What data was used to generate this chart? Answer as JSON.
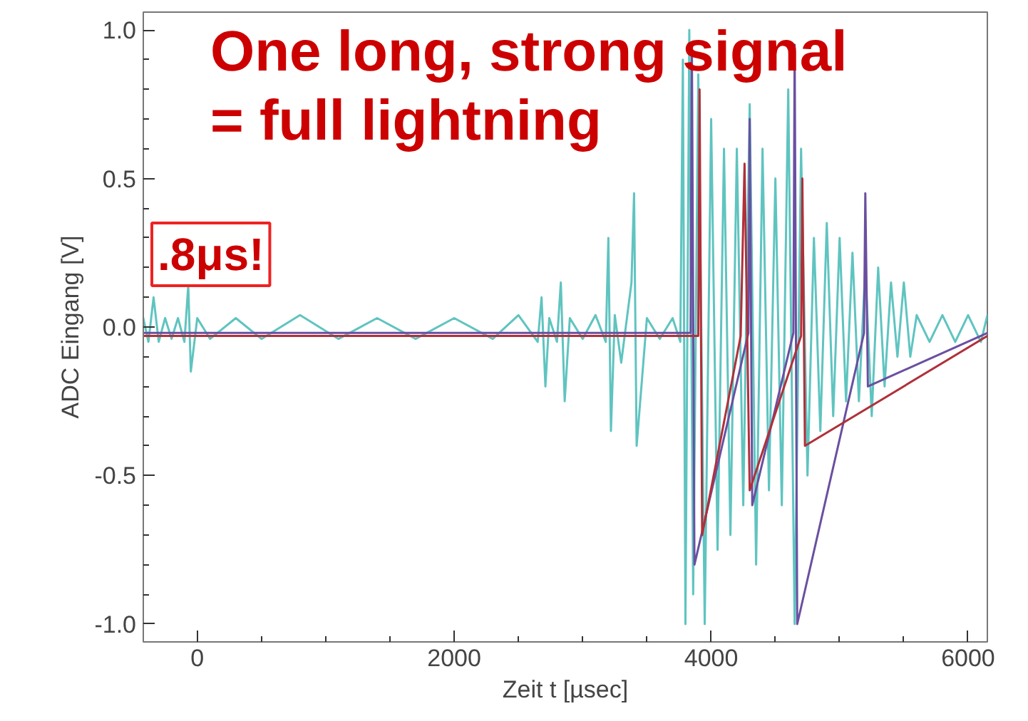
{
  "chart_data": {
    "type": "line",
    "xlabel": "Zeit t [µsec]",
    "ylabel": "ADC Eingang [V]",
    "annotations": [
      ".8μs!",
      "One long, strong signal\n= full lightning"
    ],
    "xlim": [
      -420,
      6150
    ],
    "ylim": [
      -1.06,
      1.06
    ],
    "xticks": [
      0,
      2000,
      4000,
      6000
    ],
    "yticks": [
      {
        "value": -1,
        "label": "-1.0"
      },
      {
        "value": -0.5,
        "label": "-0.5"
      },
      {
        "value": 0,
        "label": "0.0"
      },
      {
        "value": 0.5,
        "label": "0.5"
      },
      {
        "value": 1,
        "label": "1.0"
      }
    ],
    "grid": false,
    "line_style": "solid",
    "marker": "none",
    "series": [
      {
        "color": "#5fc4c0",
        "x": [
          -420,
          -380,
          -340,
          -300,
          -250,
          -200,
          -150,
          -100,
          -70,
          -50,
          0,
          100,
          300,
          500,
          800,
          1100,
          1400,
          1700,
          2000,
          2300,
          2500,
          2650,
          2680,
          2710,
          2740,
          2800,
          2830,
          2860,
          2900,
          3000,
          3100,
          3180,
          3200,
          3220,
          3250,
          3300,
          3380,
          3400,
          3420,
          3500,
          3600,
          3700,
          3760,
          3780,
          3800,
          3830,
          3860,
          3900,
          3950,
          4000,
          4050,
          4100,
          4150,
          4200,
          4250,
          4300,
          4350,
          4400,
          4450,
          4500,
          4550,
          4600,
          4650,
          4700,
          4750,
          4800,
          4850,
          4900,
          4950,
          5000,
          5050,
          5100,
          5150,
          5200,
          5250,
          5300,
          5350,
          5400,
          5450,
          5500,
          5550,
          5600,
          5700,
          5800,
          5900,
          6000,
          6100,
          6150
        ],
        "values": [
          0.03,
          -0.05,
          0.1,
          -0.05,
          0.03,
          -0.04,
          0.03,
          -0.05,
          0.14,
          -0.15,
          0.03,
          -0.04,
          0.03,
          -0.04,
          0.04,
          -0.04,
          0.03,
          -0.04,
          0.03,
          -0.04,
          0.04,
          -0.05,
          0.1,
          -0.2,
          0.03,
          -0.05,
          0.15,
          -0.25,
          0.03,
          -0.04,
          0.04,
          -0.05,
          0.3,
          -0.35,
          0.04,
          -0.12,
          0.15,
          0.45,
          -0.4,
          0.03,
          -0.04,
          0.03,
          -0.05,
          0.9,
          -1.0,
          1.0,
          -0.9,
          0.85,
          -1.0,
          0.7,
          -0.75,
          0.6,
          -0.7,
          0.6,
          -0.6,
          0.75,
          -0.8,
          0.6,
          -0.55,
          0.5,
          -0.6,
          0.8,
          -1.0,
          0.6,
          -0.5,
          0.3,
          -0.35,
          0.35,
          -0.3,
          0.3,
          -0.25,
          0.25,
          -0.25,
          0.2,
          -0.3,
          0.2,
          -0.2,
          0.15,
          -0.1,
          0.15,
          -0.1,
          0.04,
          -0.05,
          0.04,
          -0.05,
          0.04,
          -0.05,
          0.04
        ]
      },
      {
        "color": "#6a4fa0",
        "x": [
          -420,
          3840,
          3850,
          3870,
          4290,
          4300,
          4320,
          4640,
          4650,
          4670,
          5190,
          5200,
          5220,
          6150
        ],
        "values": [
          -0.02,
          -0.02,
          0.95,
          -0.8,
          -0.02,
          0.7,
          -0.6,
          -0.02,
          0.95,
          -1.0,
          -0.02,
          0.45,
          -0.2,
          -0.02
        ]
      },
      {
        "color": "#b0303a",
        "x": [
          -420,
          3900,
          3910,
          3930,
          4230,
          4260,
          4300,
          4700,
          4710,
          4730,
          6150
        ],
        "values": [
          -0.03,
          -0.03,
          0.8,
          -0.7,
          -0.03,
          0.55,
          -0.55,
          -0.03,
          0.5,
          -0.4,
          -0.03
        ]
      }
    ]
  }
}
